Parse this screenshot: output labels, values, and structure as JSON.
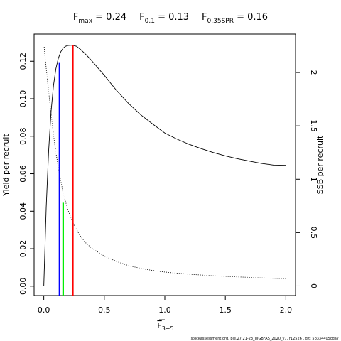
{
  "chart_data": {
    "type": "line",
    "title_parts": [
      {
        "main": "F",
        "sub": "max",
        "rest": " = 0.24"
      },
      {
        "main": "F",
        "sub": "0.1",
        "rest": " = 0.13"
      },
      {
        "main": "F",
        "sub": "0.35SPR",
        "rest": " = 0.16"
      }
    ],
    "xlabel": {
      "main": "F",
      "sub": "3−5"
    },
    "ylabel": "Yield per recruit",
    "y2label": "SSB per recruit",
    "xlim": [
      -0.08,
      2.08
    ],
    "ylim": [
      -0.005,
      0.1345
    ],
    "y2lim": [
      -0.09,
      2.36
    ],
    "x_ticks": [
      0,
      0.5,
      1,
      1.5,
      2
    ],
    "x_tick_labels": [
      "0.0",
      "0.5",
      "1.0",
      "1.5",
      "2.0"
    ],
    "y_ticks": [
      0,
      0.02,
      0.04,
      0.06,
      0.08,
      0.1,
      0.12
    ],
    "y_tick_labels": [
      "0.00",
      "0.02",
      "0.04",
      "0.06",
      "0.08",
      "0.10",
      "0.12"
    ],
    "y2_ticks": [
      0,
      0.5,
      1,
      1.5,
      2
    ],
    "y2_tick_labels": [
      "0",
      "0.5",
      "1",
      "1.5",
      "2"
    ],
    "grid": false,
    "series": [
      {
        "axis": "left",
        "style": "solid",
        "color": "#000000",
        "x": [
          0,
          0.02,
          0.04,
          0.06,
          0.08,
          0.1,
          0.12,
          0.14,
          0.16,
          0.18,
          0.2,
          0.22,
          0.24,
          0.27,
          0.3,
          0.35,
          0.4,
          0.5,
          0.6,
          0.7,
          0.8,
          0.9,
          1.0,
          1.1,
          1.2,
          1.3,
          1.4,
          1.5,
          1.6,
          1.7,
          1.8,
          1.9,
          2.0
        ],
        "values": [
          0,
          0.042,
          0.072,
          0.093,
          0.107,
          0.116,
          0.1215,
          0.125,
          0.127,
          0.128,
          0.1284,
          0.1285,
          0.1285,
          0.128,
          0.1265,
          0.1235,
          0.12,
          0.1125,
          0.1045,
          0.0975,
          0.0915,
          0.0865,
          0.0817,
          0.0785,
          0.0757,
          0.0734,
          0.0713,
          0.0695,
          0.068,
          0.0667,
          0.0655,
          0.0646,
          0.0645
        ]
      },
      {
        "axis": "right",
        "style": "dotted",
        "color": "#000000",
        "x": [
          0,
          0.02,
          0.05,
          0.08,
          0.1,
          0.13,
          0.16,
          0.2,
          0.25,
          0.3,
          0.35,
          0.4,
          0.5,
          0.6,
          0.7,
          0.8,
          0.9,
          1.0,
          1.2,
          1.4,
          1.6,
          1.8,
          2.0
        ],
        "values": [
          2.28,
          2.04,
          1.72,
          1.42,
          1.25,
          1.05,
          0.87,
          0.71,
          0.57,
          0.47,
          0.4,
          0.35,
          0.28,
          0.23,
          0.19,
          0.165,
          0.145,
          0.13,
          0.11,
          0.095,
          0.085,
          0.075,
          0.068
        ]
      }
    ],
    "reference_lines": [
      {
        "name": "F0.1",
        "x": 0.13,
        "y_top": 0.1195,
        "color": "#0000ff"
      },
      {
        "name": "F0.35SPR",
        "x": 0.16,
        "y_top": 0.0445,
        "color": "#00ee00"
      },
      {
        "name": "Fmax",
        "x": 0.24,
        "y_top": 0.1285,
        "color": "#ff0000"
      }
    ],
    "footer": "stockassessment.org, ple.27.21-23_WGBFAS_2020_v7, r12526 , git: 5b334405cda7"
  }
}
